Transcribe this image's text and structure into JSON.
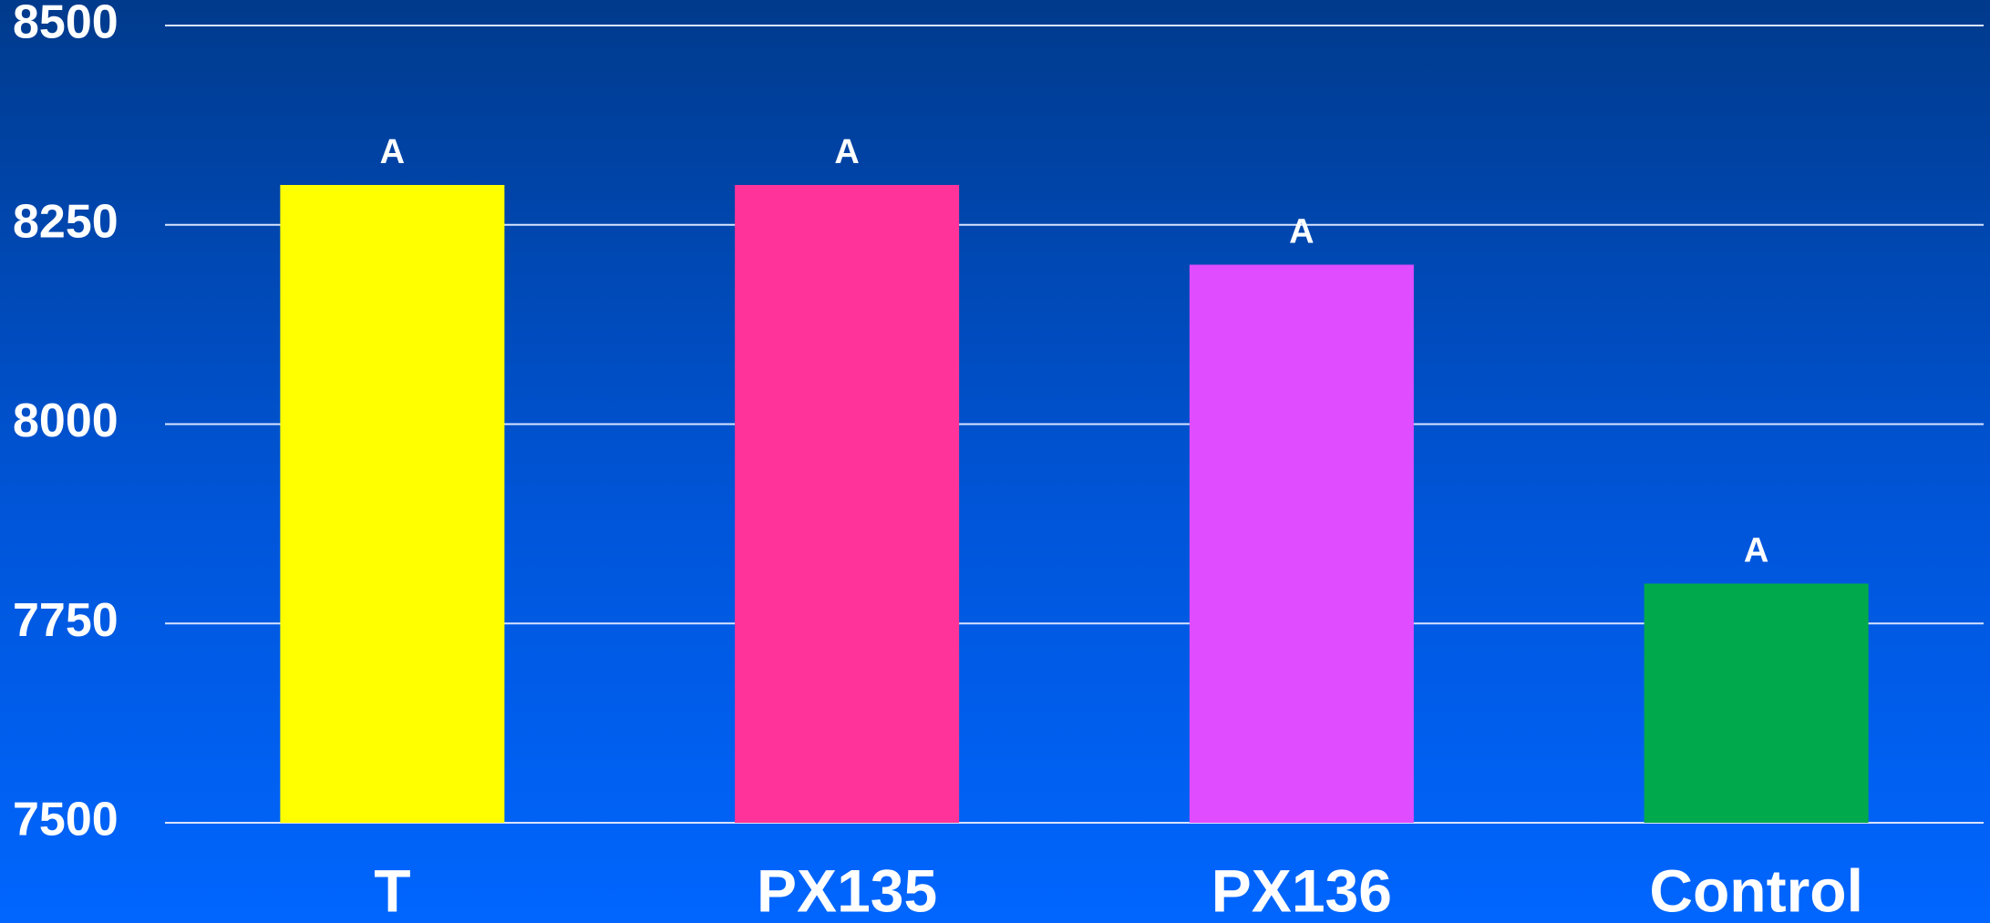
{
  "chart_data": {
    "type": "bar",
    "categories": [
      "T",
      "PX135",
      "PX136",
      "Control"
    ],
    "values": [
      8300,
      8300,
      8200,
      7800
    ],
    "colors": [
      "#ffff00",
      "#ff3399",
      "#e04cff",
      "#00aa4c"
    ],
    "letters": [
      "A",
      "A",
      "A",
      "A"
    ],
    "ylim": [
      7500,
      8500
    ],
    "yticks": [
      7500,
      7750,
      8000,
      8250,
      8500
    ],
    "grid": true
  }
}
